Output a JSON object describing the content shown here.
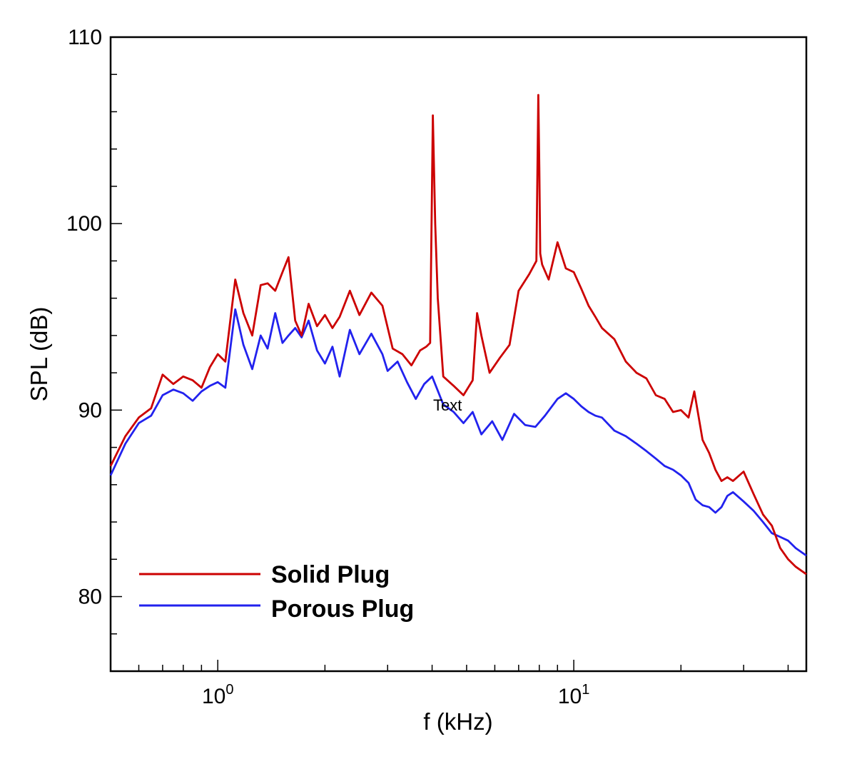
{
  "chart_data": {
    "type": "line",
    "xlabel": "f (kHz)",
    "ylabel": "SPL (dB)",
    "x_scale": "log",
    "xlim": [
      0.5,
      45
    ],
    "ylim": [
      76,
      110
    ],
    "y_major_ticks": [
      80,
      90,
      100,
      110
    ],
    "y_tick_labels": [
      "80",
      "90",
      "100",
      "110"
    ],
    "x_tick_labels": [
      {
        "value": 1,
        "base": "10",
        "exp": "0"
      },
      {
        "value": 10,
        "base": "10",
        "exp": "1"
      }
    ],
    "grid": false,
    "legend_position": "bottom-left",
    "annotation": "Text",
    "series": [
      {
        "name": "Solid Plug",
        "color": "#cc0000",
        "x": [
          0.5,
          0.55,
          0.6,
          0.65,
          0.7,
          0.75,
          0.8,
          0.85,
          0.9,
          0.95,
          1.0,
          1.05,
          1.12,
          1.18,
          1.25,
          1.32,
          1.38,
          1.45,
          1.52,
          1.58,
          1.65,
          1.72,
          1.8,
          1.9,
          2.0,
          2.1,
          2.2,
          2.35,
          2.5,
          2.7,
          2.9,
          3.1,
          3.3,
          3.5,
          3.7,
          3.85,
          3.95,
          4.02,
          4.08,
          4.15,
          4.3,
          4.6,
          4.9,
          5.2,
          5.35,
          5.5,
          5.8,
          6.2,
          6.6,
          7.0,
          7.5,
          7.85,
          7.95,
          8.0,
          8.05,
          8.15,
          8.5,
          9.0,
          9.5,
          10.0,
          10.5,
          11.0,
          11.5,
          12.0,
          13.0,
          14.0,
          15.0,
          16.0,
          17.0,
          18.0,
          19.0,
          20.0,
          21.0,
          21.8,
          23.0,
          24.0,
          25.0,
          26.0,
          27.0,
          28.0,
          30.0,
          32.0,
          34.0,
          36.0,
          38.0,
          40.0,
          42.0,
          45.0
        ],
        "values": [
          87.0,
          88.6,
          89.6,
          90.1,
          91.9,
          91.4,
          91.8,
          91.6,
          91.2,
          92.3,
          93.0,
          92.6,
          97.0,
          95.2,
          94.0,
          96.7,
          96.8,
          96.4,
          97.4,
          98.2,
          94.8,
          94.0,
          95.7,
          94.5,
          95.1,
          94.4,
          95.0,
          96.4,
          95.1,
          96.3,
          95.6,
          93.3,
          93.0,
          92.4,
          93.2,
          93.4,
          93.6,
          105.8,
          100.0,
          96.0,
          91.8,
          91.3,
          90.8,
          91.6,
          95.2,
          94.0,
          92.0,
          92.8,
          93.5,
          96.4,
          97.3,
          98.0,
          106.9,
          103.0,
          98.4,
          97.8,
          97.0,
          99.0,
          97.6,
          97.4,
          96.5,
          95.6,
          95.0,
          94.4,
          93.8,
          92.6,
          92.0,
          91.7,
          90.8,
          90.6,
          89.9,
          90.0,
          89.6,
          91.0,
          88.4,
          87.7,
          86.8,
          86.2,
          86.4,
          86.2,
          86.7,
          85.5,
          84.4,
          83.8,
          82.6,
          82.0,
          81.6,
          81.2
        ]
      },
      {
        "name": "Porous Plug",
        "color": "#2222ee",
        "x": [
          0.5,
          0.55,
          0.6,
          0.65,
          0.7,
          0.75,
          0.8,
          0.85,
          0.9,
          0.95,
          1.0,
          1.05,
          1.12,
          1.18,
          1.25,
          1.32,
          1.38,
          1.45,
          1.52,
          1.58,
          1.65,
          1.72,
          1.8,
          1.9,
          2.0,
          2.1,
          2.2,
          2.35,
          2.5,
          2.7,
          2.9,
          3.0,
          3.2,
          3.4,
          3.6,
          3.8,
          4.0,
          4.3,
          4.6,
          4.9,
          5.2,
          5.5,
          5.9,
          6.3,
          6.8,
          7.3,
          7.8,
          8.3,
          9.0,
          9.5,
          10.0,
          10.5,
          11.0,
          11.5,
          12.0,
          13.0,
          14.0,
          15.0,
          16.0,
          17.0,
          18.0,
          19.0,
          20.0,
          21.0,
          22.0,
          23.0,
          24.0,
          25.0,
          26.0,
          27.0,
          28.0,
          30.0,
          32.0,
          34.0,
          36.0,
          38.0,
          40.0,
          42.0,
          45.0
        ],
        "values": [
          86.5,
          88.2,
          89.3,
          89.7,
          90.8,
          91.1,
          90.9,
          90.5,
          91.0,
          91.3,
          91.5,
          91.2,
          95.4,
          93.5,
          92.2,
          94.0,
          93.3,
          95.2,
          93.6,
          94.0,
          94.4,
          93.9,
          94.8,
          93.2,
          92.5,
          93.4,
          91.8,
          94.3,
          93.0,
          94.1,
          93.0,
          92.1,
          92.6,
          91.5,
          90.6,
          91.4,
          91.8,
          90.3,
          89.9,
          89.3,
          89.9,
          88.7,
          89.4,
          88.4,
          89.8,
          89.2,
          89.1,
          89.7,
          90.6,
          90.9,
          90.6,
          90.2,
          89.9,
          89.7,
          89.6,
          88.9,
          88.6,
          88.2,
          87.8,
          87.4,
          87.0,
          86.8,
          86.5,
          86.1,
          85.2,
          84.9,
          84.8,
          84.5,
          84.8,
          85.4,
          85.6,
          85.1,
          84.6,
          84.0,
          83.4,
          83.2,
          83.0,
          82.6,
          82.2
        ]
      }
    ]
  }
}
